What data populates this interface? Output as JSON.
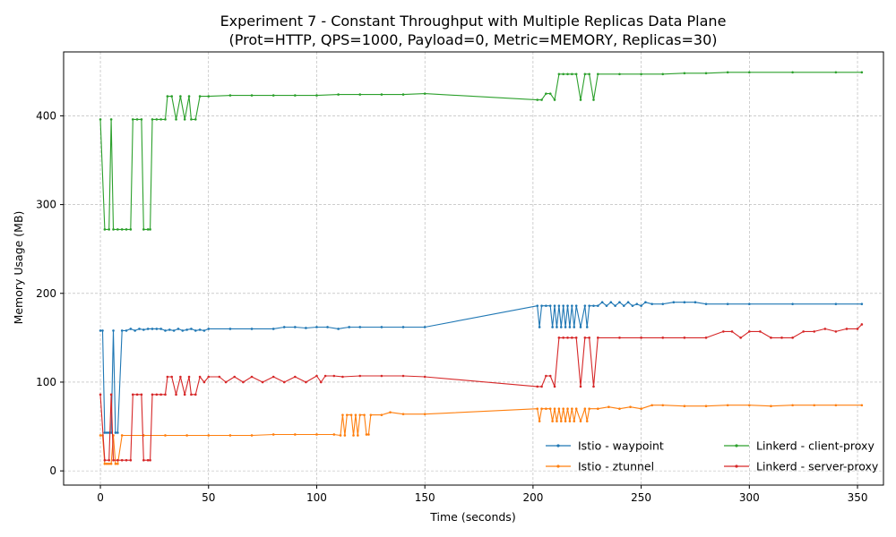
{
  "chart_data": {
    "type": "line",
    "title": "Experiment 7 - Constant Throughput with Multiple Replicas Data Plane",
    "subtitle": "(Prot=HTTP, QPS=1000, Payload=0, Metric=MEMORY, Replicas=30)",
    "xlabel": "Time (seconds)",
    "ylabel": "Memory Usage (MB)",
    "xlim": [
      -17,
      362
    ],
    "ylim": [
      -16,
      472
    ],
    "xticks": [
      0,
      50,
      100,
      150,
      200,
      250,
      300,
      350
    ],
    "yticks": [
      0,
      100,
      200,
      300,
      400
    ],
    "grid": true,
    "legend_position": "lower-right",
    "series": [
      {
        "name": "Istio - waypoint",
        "color": "#1f77b4",
        "points": [
          [
            0,
            158
          ],
          [
            1,
            158
          ],
          [
            2,
            43
          ],
          [
            3,
            43
          ],
          [
            4,
            43
          ],
          [
            5,
            43
          ],
          [
            6,
            158
          ],
          [
            7,
            43
          ],
          [
            8,
            43
          ],
          [
            10,
            158
          ],
          [
            12,
            158
          ],
          [
            14,
            160
          ],
          [
            16,
            158
          ],
          [
            18,
            160
          ],
          [
            20,
            159
          ],
          [
            22,
            160
          ],
          [
            24,
            160
          ],
          [
            26,
            160
          ],
          [
            28,
            160
          ],
          [
            30,
            158
          ],
          [
            32,
            159
          ],
          [
            34,
            158
          ],
          [
            36,
            160
          ],
          [
            38,
            158
          ],
          [
            40,
            159
          ],
          [
            42,
            160
          ],
          [
            44,
            158
          ],
          [
            46,
            159
          ],
          [
            48,
            158
          ],
          [
            50,
            160
          ],
          [
            60,
            160
          ],
          [
            70,
            160
          ],
          [
            80,
            160
          ],
          [
            85,
            162
          ],
          [
            90,
            162
          ],
          [
            95,
            161
          ],
          [
            100,
            162
          ],
          [
            105,
            162
          ],
          [
            110,
            160
          ],
          [
            115,
            162
          ],
          [
            120,
            162
          ],
          [
            130,
            162
          ],
          [
            140,
            162
          ],
          [
            150,
            162
          ],
          [
            202,
            186
          ],
          [
            203,
            162
          ],
          [
            204,
            186
          ],
          [
            206,
            186
          ],
          [
            208,
            186
          ],
          [
            209,
            162
          ],
          [
            210,
            186
          ],
          [
            211,
            162
          ],
          [
            212,
            186
          ],
          [
            213,
            162
          ],
          [
            214,
            186
          ],
          [
            215,
            162
          ],
          [
            216,
            186
          ],
          [
            217,
            162
          ],
          [
            218,
            186
          ],
          [
            219,
            162
          ],
          [
            220,
            186
          ],
          [
            222,
            162
          ],
          [
            224,
            186
          ],
          [
            225,
            162
          ],
          [
            226,
            186
          ],
          [
            228,
            186
          ],
          [
            230,
            186
          ],
          [
            232,
            190
          ],
          [
            234,
            186
          ],
          [
            236,
            190
          ],
          [
            238,
            186
          ],
          [
            240,
            190
          ],
          [
            242,
            186
          ],
          [
            244,
            190
          ],
          [
            246,
            186
          ],
          [
            248,
            188
          ],
          [
            250,
            186
          ],
          [
            252,
            190
          ],
          [
            255,
            188
          ],
          [
            260,
            188
          ],
          [
            265,
            190
          ],
          [
            270,
            190
          ],
          [
            275,
            190
          ],
          [
            280,
            188
          ],
          [
            290,
            188
          ],
          [
            300,
            188
          ],
          [
            320,
            188
          ],
          [
            340,
            188
          ],
          [
            352,
            188
          ]
        ]
      },
      {
        "name": "Istio - ztunnel",
        "color": "#ff7f0e",
        "points": [
          [
            0,
            40
          ],
          [
            1,
            40
          ],
          [
            2,
            8
          ],
          [
            3,
            8
          ],
          [
            4,
            8
          ],
          [
            5,
            8
          ],
          [
            6,
            40
          ],
          [
            7,
            8
          ],
          [
            8,
            8
          ],
          [
            10,
            40
          ],
          [
            20,
            40
          ],
          [
            30,
            40
          ],
          [
            40,
            40
          ],
          [
            50,
            40
          ],
          [
            60,
            40
          ],
          [
            70,
            40
          ],
          [
            80,
            41
          ],
          [
            90,
            41
          ],
          [
            100,
            41
          ],
          [
            108,
            41
          ],
          [
            111,
            40
          ],
          [
            112,
            63
          ],
          [
            113,
            40
          ],
          [
            114,
            63
          ],
          [
            116,
            63
          ],
          [
            117,
            40
          ],
          [
            118,
            63
          ],
          [
            119,
            40
          ],
          [
            120,
            63
          ],
          [
            122,
            63
          ],
          [
            123,
            41
          ],
          [
            124,
            41
          ],
          [
            125,
            63
          ],
          [
            130,
            63
          ],
          [
            134,
            66
          ],
          [
            140,
            64
          ],
          [
            150,
            64
          ],
          [
            202,
            70
          ],
          [
            203,
            56
          ],
          [
            204,
            70
          ],
          [
            206,
            70
          ],
          [
            208,
            70
          ],
          [
            209,
            56
          ],
          [
            210,
            70
          ],
          [
            211,
            56
          ],
          [
            212,
            70
          ],
          [
            213,
            56
          ],
          [
            214,
            70
          ],
          [
            215,
            56
          ],
          [
            216,
            70
          ],
          [
            217,
            56
          ],
          [
            218,
            70
          ],
          [
            219,
            56
          ],
          [
            220,
            70
          ],
          [
            222,
            56
          ],
          [
            224,
            70
          ],
          [
            225,
            56
          ],
          [
            226,
            70
          ],
          [
            230,
            70
          ],
          [
            235,
            72
          ],
          [
            240,
            70
          ],
          [
            245,
            72
          ],
          [
            250,
            70
          ],
          [
            255,
            74
          ],
          [
            260,
            74
          ],
          [
            270,
            73
          ],
          [
            280,
            73
          ],
          [
            290,
            74
          ],
          [
            300,
            74
          ],
          [
            310,
            73
          ],
          [
            320,
            74
          ],
          [
            330,
            74
          ],
          [
            340,
            74
          ],
          [
            352,
            74
          ]
        ]
      },
      {
        "name": "Linkerd - client-proxy",
        "color": "#2ca02c",
        "points": [
          [
            0,
            396
          ],
          [
            2,
            272
          ],
          [
            4,
            272
          ],
          [
            5,
            396
          ],
          [
            6,
            272
          ],
          [
            8,
            272
          ],
          [
            10,
            272
          ],
          [
            12,
            272
          ],
          [
            14,
            272
          ],
          [
            15,
            396
          ],
          [
            17,
            396
          ],
          [
            19,
            396
          ],
          [
            20,
            272
          ],
          [
            22,
            272
          ],
          [
            23,
            272
          ],
          [
            24,
            396
          ],
          [
            26,
            396
          ],
          [
            28,
            396
          ],
          [
            30,
            396
          ],
          [
            31,
            422
          ],
          [
            33,
            422
          ],
          [
            35,
            396
          ],
          [
            37,
            422
          ],
          [
            39,
            396
          ],
          [
            41,
            422
          ],
          [
            42,
            396
          ],
          [
            44,
            396
          ],
          [
            46,
            422
          ],
          [
            50,
            422
          ],
          [
            60,
            423
          ],
          [
            70,
            423
          ],
          [
            80,
            423
          ],
          [
            90,
            423
          ],
          [
            100,
            423
          ],
          [
            110,
            424
          ],
          [
            120,
            424
          ],
          [
            130,
            424
          ],
          [
            140,
            424
          ],
          [
            150,
            425
          ],
          [
            202,
            418
          ],
          [
            204,
            418
          ],
          [
            206,
            425
          ],
          [
            208,
            425
          ],
          [
            210,
            418
          ],
          [
            212,
            447
          ],
          [
            214,
            447
          ],
          [
            216,
            447
          ],
          [
            218,
            447
          ],
          [
            220,
            447
          ],
          [
            222,
            418
          ],
          [
            224,
            447
          ],
          [
            226,
            447
          ],
          [
            228,
            418
          ],
          [
            230,
            447
          ],
          [
            240,
            447
          ],
          [
            250,
            447
          ],
          [
            260,
            447
          ],
          [
            270,
            448
          ],
          [
            280,
            448
          ],
          [
            290,
            449
          ],
          [
            300,
            449
          ],
          [
            320,
            449
          ],
          [
            340,
            449
          ],
          [
            352,
            449
          ]
        ]
      },
      {
        "name": "Linkerd - server-proxy",
        "color": "#d62728",
        "points": [
          [
            0,
            86
          ],
          [
            2,
            12
          ],
          [
            4,
            12
          ],
          [
            5,
            86
          ],
          [
            6,
            12
          ],
          [
            8,
            12
          ],
          [
            10,
            12
          ],
          [
            12,
            12
          ],
          [
            14,
            12
          ],
          [
            15,
            86
          ],
          [
            17,
            86
          ],
          [
            19,
            86
          ],
          [
            20,
            12
          ],
          [
            22,
            12
          ],
          [
            23,
            12
          ],
          [
            24,
            86
          ],
          [
            26,
            86
          ],
          [
            28,
            86
          ],
          [
            30,
            86
          ],
          [
            31,
            106
          ],
          [
            33,
            106
          ],
          [
            35,
            86
          ],
          [
            37,
            106
          ],
          [
            39,
            86
          ],
          [
            41,
            106
          ],
          [
            42,
            86
          ],
          [
            44,
            86
          ],
          [
            46,
            106
          ],
          [
            48,
            100
          ],
          [
            50,
            106
          ],
          [
            55,
            106
          ],
          [
            58,
            100
          ],
          [
            62,
            106
          ],
          [
            66,
            100
          ],
          [
            70,
            106
          ],
          [
            75,
            100
          ],
          [
            80,
            106
          ],
          [
            85,
            100
          ],
          [
            90,
            106
          ],
          [
            95,
            100
          ],
          [
            100,
            107
          ],
          [
            102,
            100
          ],
          [
            104,
            107
          ],
          [
            108,
            107
          ],
          [
            112,
            106
          ],
          [
            120,
            107
          ],
          [
            130,
            107
          ],
          [
            140,
            107
          ],
          [
            150,
            106
          ],
          [
            202,
            95
          ],
          [
            204,
            95
          ],
          [
            206,
            107
          ],
          [
            208,
            107
          ],
          [
            210,
            95
          ],
          [
            212,
            150
          ],
          [
            214,
            150
          ],
          [
            216,
            150
          ],
          [
            218,
            150
          ],
          [
            220,
            150
          ],
          [
            222,
            95
          ],
          [
            224,
            150
          ],
          [
            226,
            150
          ],
          [
            228,
            95
          ],
          [
            230,
            150
          ],
          [
            240,
            150
          ],
          [
            250,
            150
          ],
          [
            260,
            150
          ],
          [
            270,
            150
          ],
          [
            280,
            150
          ],
          [
            288,
            157
          ],
          [
            292,
            157
          ],
          [
            296,
            150
          ],
          [
            300,
            157
          ],
          [
            305,
            157
          ],
          [
            310,
            150
          ],
          [
            315,
            150
          ],
          [
            320,
            150
          ],
          [
            325,
            157
          ],
          [
            330,
            157
          ],
          [
            335,
            160
          ],
          [
            340,
            157
          ],
          [
            345,
            160
          ],
          [
            350,
            160
          ],
          [
            352,
            165
          ]
        ]
      }
    ]
  }
}
